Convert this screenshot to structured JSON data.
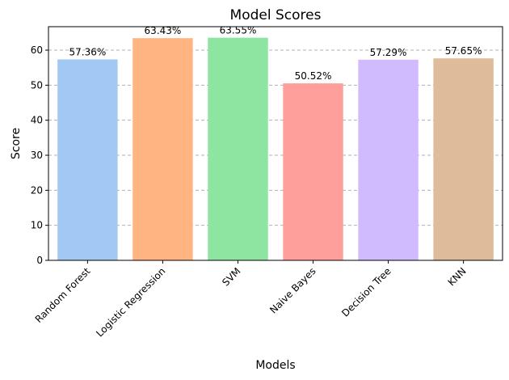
{
  "chart_data": {
    "type": "bar",
    "title": "Model Scores",
    "xlabel": "Models",
    "ylabel": "Score",
    "categories": [
      "Random Forest",
      "Logistic Regression",
      "SVM",
      "Naive Bayes",
      "Decision Tree",
      "KNN"
    ],
    "values": [
      57.36,
      63.43,
      63.55,
      50.52,
      57.29,
      57.65
    ],
    "value_labels": [
      "57.36%",
      "63.43%",
      "63.55%",
      "50.52%",
      "57.29%",
      "57.65%"
    ],
    "colors": [
      "#a1c9f4",
      "#ffb482",
      "#8de5a1",
      "#ff9f9b",
      "#d0bbff",
      "#debb9b"
    ],
    "ylim": [
      0,
      66.7
    ],
    "yticks": [
      0,
      10,
      20,
      30,
      40,
      50,
      60
    ],
    "grid": "y-dashed",
    "tick_rotation": 45
  }
}
